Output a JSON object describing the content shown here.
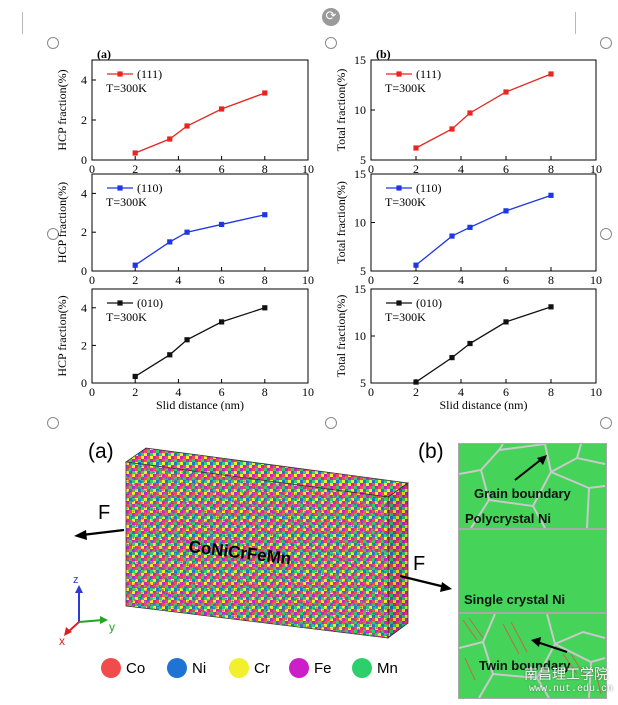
{
  "chart_data": [
    {
      "id": "a-111",
      "type": "line",
      "panel_label": "(a)",
      "series": [
        {
          "name": "(111)",
          "color": "#e8251f",
          "x": [
            2,
            3.6,
            4.4,
            6,
            8
          ],
          "y": [
            0.35,
            1.05,
            1.7,
            2.55,
            3.35
          ]
        }
      ],
      "annotation": "T=300K",
      "ylabel": "HCP fraction(%)",
      "xlim": [
        0,
        10
      ],
      "ylim": [
        0,
        5
      ],
      "xticks": [
        0,
        2,
        4,
        6,
        8,
        10
      ],
      "yticks": [
        0,
        2,
        4
      ]
    },
    {
      "id": "a-110",
      "type": "line",
      "series": [
        {
          "name": "(110)",
          "color": "#1f35e8",
          "x": [
            2,
            3.6,
            4.4,
            6,
            8
          ],
          "y": [
            0.3,
            1.5,
            2.0,
            2.4,
            2.9
          ]
        }
      ],
      "annotation": "T=300K",
      "ylabel": "HCP fraction(%)",
      "xlim": [
        0,
        10
      ],
      "ylim": [
        0,
        5
      ],
      "xticks": [
        0,
        2,
        4,
        6,
        8,
        10
      ],
      "yticks": [
        0,
        2,
        4
      ]
    },
    {
      "id": "a-010",
      "type": "line",
      "series": [
        {
          "name": "(010)",
          "color": "#111111",
          "x": [
            2,
            3.6,
            4.4,
            6,
            8
          ],
          "y": [
            0.35,
            1.5,
            2.3,
            3.25,
            4.0
          ]
        }
      ],
      "annotation": "T=300K",
      "ylabel": "HCP fraction(%)",
      "xlabel": "Slid distance (nm)",
      "xlim": [
        0,
        10
      ],
      "ylim": [
        0,
        5
      ],
      "xticks": [
        0,
        2,
        4,
        6,
        8,
        10
      ],
      "yticks": [
        0,
        2,
        4
      ]
    },
    {
      "id": "b-111",
      "type": "line",
      "panel_label": "(b)",
      "series": [
        {
          "name": "(111)",
          "color": "#e8251f",
          "x": [
            2,
            3.6,
            4.4,
            6,
            8
          ],
          "y": [
            6.2,
            8.1,
            9.7,
            11.8,
            13.6
          ]
        }
      ],
      "annotation": "T=300K",
      "ylabel": "Total fraction(%)",
      "xlim": [
        0,
        10
      ],
      "ylim": [
        5,
        15
      ],
      "xticks": [
        0,
        2,
        4,
        6,
        8,
        10
      ],
      "yticks": [
        5,
        10,
        15
      ]
    },
    {
      "id": "b-110",
      "type": "line",
      "series": [
        {
          "name": "(110)",
          "color": "#1f35e8",
          "x": [
            2,
            3.6,
            4.4,
            6,
            8
          ],
          "y": [
            5.6,
            8.6,
            9.5,
            11.2,
            12.8
          ]
        }
      ],
      "annotation": "T=300K",
      "ylabel": "Total fraction(%)",
      "xlim": [
        0,
        10
      ],
      "ylim": [
        5,
        15
      ],
      "xticks": [
        0,
        2,
        4,
        6,
        8,
        10
      ],
      "yticks": [
        5,
        10,
        15
      ]
    },
    {
      "id": "b-010",
      "type": "line",
      "series": [
        {
          "name": "(010)",
          "color": "#111111",
          "x": [
            2,
            3.6,
            4.4,
            6,
            8
          ],
          "y": [
            5.1,
            7.7,
            9.2,
            11.5,
            13.1
          ]
        }
      ],
      "annotation": "T=300K",
      "ylabel": "Total fraction(%)",
      "xlabel": "Slid distance (nm)",
      "xlim": [
        0,
        10
      ],
      "ylim": [
        5,
        15
      ],
      "xticks": [
        0,
        2,
        4,
        6,
        8,
        10
      ],
      "yticks": [
        5,
        10,
        15
      ]
    }
  ],
  "schematic": {
    "label_a": "(a)",
    "label_b": "(b)",
    "block_label": "CoNiCrFeMn",
    "force_left": "F",
    "force_right": "F",
    "axes": {
      "z": "z",
      "y": "y",
      "x": "x"
    },
    "legend": [
      {
        "name": "Co",
        "color": "#f24b4b"
      },
      {
        "name": "Ni",
        "color": "#1f73d4"
      },
      {
        "name": "Cr",
        "color": "#f2ef2c"
      },
      {
        "name": "Fe",
        "color": "#cc1fc9"
      },
      {
        "name": "Mn",
        "color": "#2ccf6a"
      }
    ],
    "panels": {
      "grain_boundary": "Grain boundary",
      "polycrystal": "Polycrystal Ni",
      "single_crystal": "Single crystal Ni",
      "twin_boundary": "Twin boundary"
    },
    "watermark_cn": "南昌理工学院",
    "watermark_url": "www.nut.edu.cn"
  },
  "colors": {
    "grain_green": "#45d35a",
    "boundary": "#c9c9c9"
  }
}
